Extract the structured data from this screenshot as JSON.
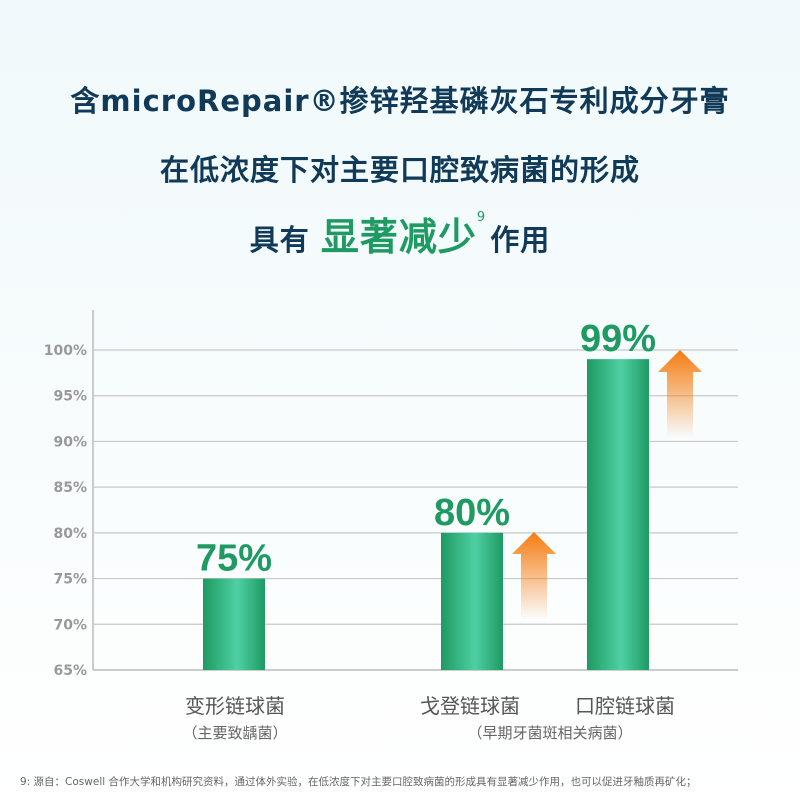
{
  "headline": {
    "line1": "含microRepair®掺锌羟基磷灰石专利成分牙膏",
    "line2": "在低浓度下对主要口腔致病菌的形成",
    "line3_prefix": "具有",
    "line3_highlight": "显著减少",
    "line3_sup": "9",
    "line3_suffix": "作用"
  },
  "chart_data": {
    "type": "bar",
    "categories": [
      "变形链球菌",
      "戈登链球菌",
      "口腔链球菌"
    ],
    "category_notes": [
      "（主要致龋菌）",
      "（早期牙菌斑相关病菌）"
    ],
    "values": [
      75,
      80,
      99
    ],
    "value_labels": [
      "75%",
      "80%",
      "99%"
    ],
    "yticks": [
      "65%",
      "70%",
      "75%",
      "80%",
      "85%",
      "90%",
      "95%",
      "100%"
    ],
    "ylim": [
      65,
      100
    ],
    "grid": true
  },
  "colors": {
    "bar": "#1e9a62",
    "bar_light": "#4fd0a4",
    "label": "#1e9a62",
    "arrow": "#f57c12",
    "headline": "#103a57"
  },
  "footnote": "9: 源自：Coswell 合作大学和机构研究资料，通过体外实验，在低浓度下对主要口腔致病菌的形成具有显著减少作用，也可以促进牙釉质再矿化；"
}
